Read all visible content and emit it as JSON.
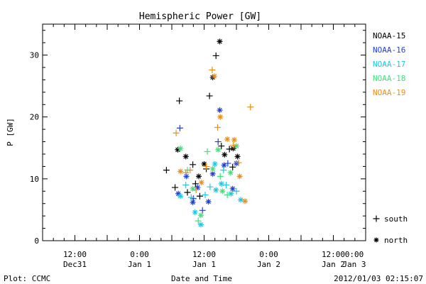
{
  "chart_data": {
    "type": "scatter",
    "title": "Hemispheric Power [GW]",
    "ylabel": "P [GW]",
    "xlabel": "Date and Time",
    "ylim": [
      0,
      35
    ],
    "yticks": [
      0,
      10,
      20,
      30
    ],
    "xlim_hours": [
      0,
      60
    ],
    "xticks": [
      {
        "hour": 6,
        "line1": "12:00",
        "line2": "Dec31"
      },
      {
        "hour": 18,
        "line1": "0:00",
        "line2": "Jan 1"
      },
      {
        "hour": 30,
        "line1": "12:00",
        "line2": "Jan 1"
      },
      {
        "hour": 42,
        "line1": "0:00",
        "line2": "Jan 2"
      },
      {
        "hour": 54,
        "line1": "12:00",
        "line2": "Jan 2"
      },
      {
        "hour": 66,
        "line1": "0:00",
        "line2": "Jan 3"
      }
    ],
    "legend_position": "right",
    "marker_legend": [
      {
        "marker": "plus",
        "label": "south"
      },
      {
        "marker": "star",
        "label": "north"
      }
    ],
    "series": [
      {
        "name": "NOAA-15",
        "color": "#000000",
        "points": [
          {
            "x": 24.6,
            "y": 8.6,
            "m": "plus"
          },
          {
            "x": 25.4,
            "y": 22.6,
            "m": "plus"
          },
          {
            "x": 23.0,
            "y": 11.4,
            "m": "plus"
          },
          {
            "x": 25.1,
            "y": 14.7,
            "m": "star"
          },
          {
            "x": 26.6,
            "y": 13.6,
            "m": "star"
          },
          {
            "x": 26.9,
            "y": 7.8,
            "m": "plus"
          },
          {
            "x": 27.9,
            "y": 12.3,
            "m": "plus"
          },
          {
            "x": 28.4,
            "y": 9.2,
            "m": "plus"
          },
          {
            "x": 29.0,
            "y": 10.4,
            "m": "star"
          },
          {
            "x": 29.2,
            "y": 7.2,
            "m": "plus"
          },
          {
            "x": 30.4,
            "y": 11.6,
            "m": "plus"
          },
          {
            "x": 31.0,
            "y": 23.4,
            "m": "plus"
          },
          {
            "x": 31.6,
            "y": 26.4,
            "m": "star"
          },
          {
            "x": 32.2,
            "y": 29.9,
            "m": "plus"
          },
          {
            "x": 32.9,
            "y": 32.2,
            "m": "star"
          },
          {
            "x": 33.2,
            "y": 15.3,
            "m": "plus"
          },
          {
            "x": 33.8,
            "y": 13.9,
            "m": "star"
          },
          {
            "x": 34.7,
            "y": 14.8,
            "m": "plus"
          },
          {
            "x": 35.4,
            "y": 14.9,
            "m": "star"
          },
          {
            "x": 36.2,
            "y": 13.6,
            "m": "star"
          },
          {
            "x": 35.3,
            "y": 11.9,
            "m": "plus"
          },
          {
            "x": 30.0,
            "y": 12.4,
            "m": "star"
          }
        ]
      },
      {
        "name": "NOAA-16",
        "color": "#1f3fd8",
        "points": [
          {
            "x": 25.2,
            "y": 7.6,
            "m": "star"
          },
          {
            "x": 25.5,
            "y": 18.2,
            "m": "plus"
          },
          {
            "x": 26.7,
            "y": 10.4,
            "m": "star"
          },
          {
            "x": 28.0,
            "y": 6.8,
            "m": "plus"
          },
          {
            "x": 28.8,
            "y": 8.6,
            "m": "star"
          },
          {
            "x": 29.7,
            "y": 4.9,
            "m": "plus"
          },
          {
            "x": 30.8,
            "y": 6.3,
            "m": "star"
          },
          {
            "x": 31.6,
            "y": 10.8,
            "m": "star"
          },
          {
            "x": 32.6,
            "y": 16.0,
            "m": "plus"
          },
          {
            "x": 32.9,
            "y": 21.1,
            "m": "star"
          },
          {
            "x": 33.7,
            "y": 12.2,
            "m": "star"
          },
          {
            "x": 34.4,
            "y": 12.5,
            "m": "plus"
          },
          {
            "x": 35.3,
            "y": 8.4,
            "m": "star"
          },
          {
            "x": 36.0,
            "y": 12.5,
            "m": "star"
          },
          {
            "x": 27.9,
            "y": 6.2,
            "m": "star"
          }
        ]
      },
      {
        "name": "NOAA-17",
        "color": "#1ec8e6",
        "points": [
          {
            "x": 25.6,
            "y": 7.2,
            "m": "star"
          },
          {
            "x": 26.6,
            "y": 9.0,
            "m": "plus"
          },
          {
            "x": 27.6,
            "y": 7.0,
            "m": "plus"
          },
          {
            "x": 28.3,
            "y": 4.6,
            "m": "star"
          },
          {
            "x": 29.4,
            "y": 2.6,
            "m": "star"
          },
          {
            "x": 30.2,
            "y": 7.4,
            "m": "plus"
          },
          {
            "x": 31.1,
            "y": 8.7,
            "m": "plus"
          },
          {
            "x": 32.2,
            "y": 8.2,
            "m": "star"
          },
          {
            "x": 33.2,
            "y": 9.2,
            "m": "star"
          },
          {
            "x": 34.1,
            "y": 9.0,
            "m": "plus"
          },
          {
            "x": 35.0,
            "y": 7.6,
            "m": "star"
          },
          {
            "x": 36.0,
            "y": 8.0,
            "m": "plus"
          },
          {
            "x": 36.8,
            "y": 6.6,
            "m": "star"
          },
          {
            "x": 33.6,
            "y": 11.4,
            "m": "plus"
          },
          {
            "x": 32.0,
            "y": 12.4,
            "m": "star"
          }
        ]
      },
      {
        "name": "NOAA-18",
        "color": "#44e07a",
        "points": [
          {
            "x": 25.6,
            "y": 14.9,
            "m": "star"
          },
          {
            "x": 26.9,
            "y": 11.4,
            "m": "plus"
          },
          {
            "x": 27.9,
            "y": 8.4,
            "m": "star"
          },
          {
            "x": 28.9,
            "y": 3.2,
            "m": "plus"
          },
          {
            "x": 29.4,
            "y": 4.1,
            "m": "star"
          },
          {
            "x": 30.6,
            "y": 14.4,
            "m": "plus"
          },
          {
            "x": 31.6,
            "y": 11.6,
            "m": "star"
          },
          {
            "x": 32.6,
            "y": 14.7,
            "m": "star"
          },
          {
            "x": 33.4,
            "y": 8.0,
            "m": "star"
          },
          {
            "x": 34.3,
            "y": 7.4,
            "m": "plus"
          },
          {
            "x": 34.9,
            "y": 11.0,
            "m": "star"
          },
          {
            "x": 36.0,
            "y": 15.3,
            "m": "star"
          },
          {
            "x": 33.0,
            "y": 10.4,
            "m": "plus"
          }
        ]
      },
      {
        "name": "NOAA-19",
        "color": "#e8901a",
        "points": [
          {
            "x": 24.8,
            "y": 17.4,
            "m": "plus"
          },
          {
            "x": 25.6,
            "y": 11.2,
            "m": "star"
          },
          {
            "x": 26.6,
            "y": 11.0,
            "m": "plus"
          },
          {
            "x": 27.4,
            "y": 11.4,
            "m": "plus"
          },
          {
            "x": 28.5,
            "y": 8.2,
            "m": "plus"
          },
          {
            "x": 29.5,
            "y": 9.4,
            "m": "star"
          },
          {
            "x": 30.4,
            "y": 12.0,
            "m": "plus"
          },
          {
            "x": 31.5,
            "y": 27.6,
            "m": "plus"
          },
          {
            "x": 31.9,
            "y": 26.6,
            "m": "star"
          },
          {
            "x": 32.5,
            "y": 18.3,
            "m": "plus"
          },
          {
            "x": 33.0,
            "y": 20.0,
            "m": "star"
          },
          {
            "x": 34.3,
            "y": 16.4,
            "m": "star"
          },
          {
            "x": 35.6,
            "y": 16.3,
            "m": "star"
          },
          {
            "x": 35.4,
            "y": 15.4,
            "m": "plus"
          },
          {
            "x": 36.6,
            "y": 10.4,
            "m": "star"
          },
          {
            "x": 37.6,
            "y": 6.4,
            "m": "star"
          },
          {
            "x": 38.6,
            "y": 21.6,
            "m": "plus"
          },
          {
            "x": 36.4,
            "y": 12.6,
            "m": "plus"
          }
        ]
      }
    ]
  },
  "footer": {
    "left": "Plot: CCMC",
    "right": "2012/01/03 02:15:07"
  }
}
